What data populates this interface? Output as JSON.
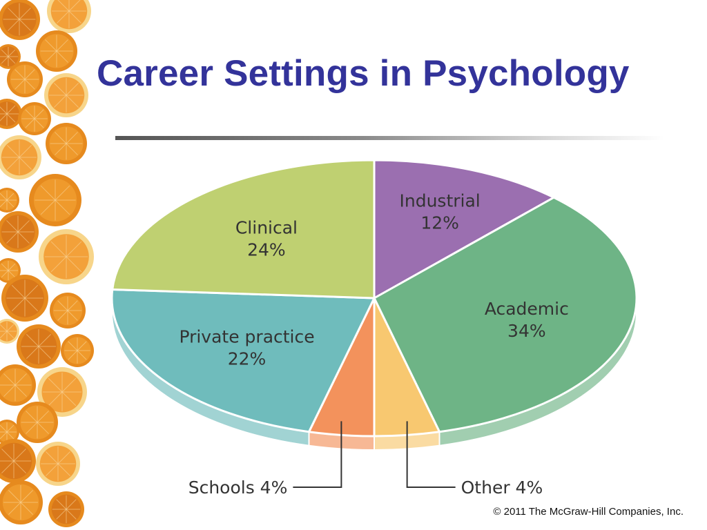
{
  "slide": {
    "title": "Career Settings in Psychology",
    "copyright": "© 2011 The McGraw-Hill Companies, Inc."
  },
  "colors": {
    "title": "#33339a",
    "Industrial": "#9b6fb0",
    "Academic": "#6eb486",
    "Other": "#f8c870",
    "Schools": "#f3925c",
    "Private practice": "#6fbcbc",
    "Clinical": "#bfd071"
  },
  "chart_data": {
    "type": "pie",
    "title": "",
    "slices": [
      {
        "label": "Industrial",
        "value": 12,
        "display": "12%"
      },
      {
        "label": "Academic",
        "value": 34,
        "display": "34%"
      },
      {
        "label": "Other",
        "value": 4,
        "display": "Other 4%"
      },
      {
        "label": "Schools",
        "value": 4,
        "display": "Schools 4%"
      },
      {
        "label": "Private practice",
        "value": 22,
        "display": "22%"
      },
      {
        "label": "Clinical",
        "value": 24,
        "display": "24%"
      }
    ]
  }
}
